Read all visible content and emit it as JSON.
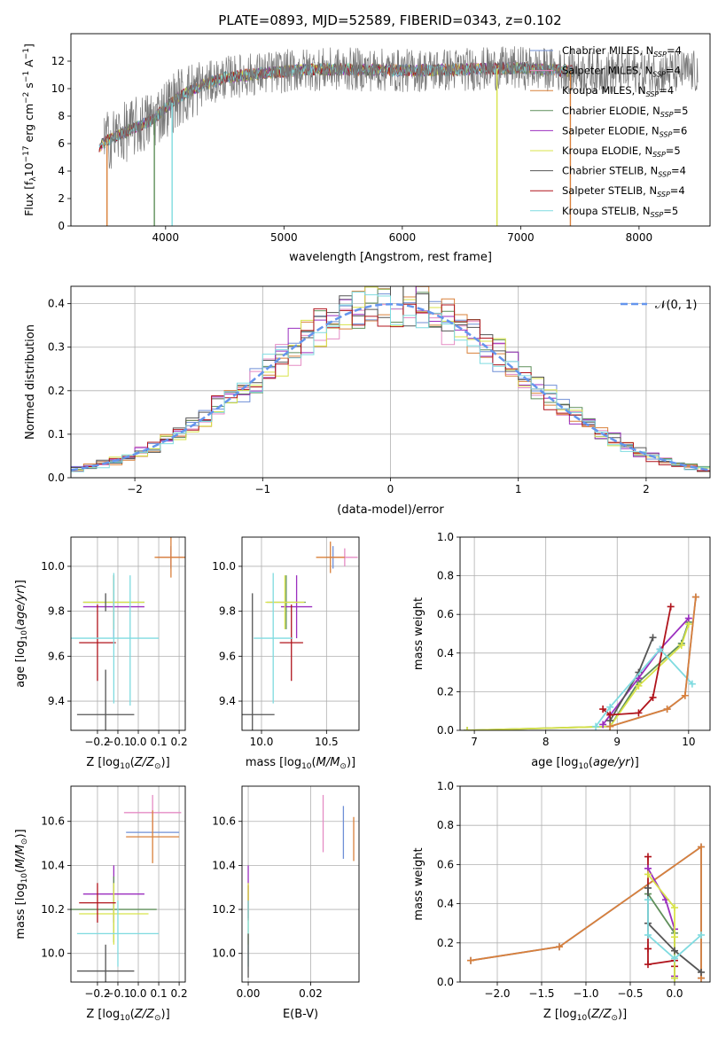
{
  "figure_title": "PLATE=0893, MJD=52589, FIBERID=0343, z=0.102",
  "colors": {
    "Chabrier MILES": "#6f8fd6",
    "Salpeter MILES": "#e58bc4",
    "Kroupa MILES": "#d9803a",
    "Chabrier ELODIE": "#5f8f5a",
    "Salpeter ELODIE": "#9b2fbf",
    "Kroupa ELODIE": "#d8e34a",
    "Chabrier STELIB": "#555555",
    "Salpeter STELIB": "#b0141c",
    "Kroupa STELIB": "#7fdbe0",
    "grid": "#b0b0b0",
    "spectrum": "#777777",
    "normal_curve": "#6495ed"
  },
  "chart_data": [
    {
      "id": "spectrum",
      "type": "line",
      "title": "PLATE=0893, MJD=52589, FIBERID=0343, z=0.102",
      "xlabel": "wavelength [Angstrom, rest frame]",
      "ylabel": "Flux [f_λ10^-17 erg cm^-2 s^-1 A^-1]",
      "xlim": [
        3200,
        8600
      ],
      "ylim": [
        0,
        14
      ],
      "xticks": [
        4000,
        5000,
        6000,
        7000,
        8000
      ],
      "yticks": [
        0,
        2,
        4,
        6,
        8,
        10,
        12
      ],
      "grid": false,
      "legend_position": "right",
      "legend": [
        {
          "name": "Chabrier MILES",
          "sub": "N_SSP=4"
        },
        {
          "name": "Salpeter MILES",
          "sub": "N_SSP=4"
        },
        {
          "name": "Kroupa MILES",
          "sub": "N_SSP=4"
        },
        {
          "name": "Chabrier ELODIE",
          "sub": "N_SSP=5"
        },
        {
          "name": "Salpeter ELODIE",
          "sub": "N_SSP=6"
        },
        {
          "name": "Kroupa ELODIE",
          "sub": "N_SSP=5"
        },
        {
          "name": "Chabrier STELIB",
          "sub": "N_SSP=4"
        },
        {
          "name": "Salpeter STELIB",
          "sub": "N_SSP=4"
        },
        {
          "name": "Kroupa STELIB",
          "sub": "N_SSP=5"
        }
      ],
      "continuum": {
        "x": [
          3400,
          3500,
          3700,
          3900,
          4000,
          4100,
          4300,
          4500,
          4800,
          5200,
          5600,
          6000,
          6500,
          7000,
          7400,
          7450
        ],
        "y": [
          5.5,
          6.2,
          7.0,
          7.8,
          8.6,
          9.3,
          10.2,
          10.8,
          11.1,
          11.4,
          11.4,
          11.3,
          11.4,
          11.5,
          11.3,
          11.3
        ]
      },
      "observed_range": [
        3480,
        8500
      ],
      "drop_lines": [
        {
          "series": "Kroupa MILES",
          "x": 3505
        },
        {
          "series": "Chabrier ELODIE",
          "x": 3905
        },
        {
          "series": "Kroupa STELIB",
          "x": 4055
        },
        {
          "series": "Kroupa ELODIE",
          "x": 6800
        },
        {
          "series": "Kroupa MILES",
          "x": 7420
        }
      ]
    },
    {
      "id": "residuals",
      "type": "histogram",
      "xlabel": "(data-model)/error",
      "ylabel": "Normed distribution",
      "xlim": [
        -2.5,
        2.5
      ],
      "ylim": [
        0,
        0.44
      ],
      "xticks": [
        -2,
        -1,
        0,
        1,
        2
      ],
      "yticks": [
        0.0,
        0.1,
        0.2,
        0.3,
        0.4
      ],
      "grid": true,
      "legend_position": "top-right",
      "legend": [
        {
          "name": "𝒩(0, 1)"
        }
      ],
      "bin_edges_start": -2.5,
      "bin_width": 0.1,
      "normal": {
        "mean": 0,
        "sigma": 1
      }
    },
    {
      "id": "Z-age",
      "type": "errorbar",
      "xlabel": "Z [log10(Z/Z⊙)]",
      "ylabel": "age  [log10(age/yr)]",
      "xlim": [
        -0.33,
        0.23
      ],
      "ylim": [
        9.27,
        10.13
      ],
      "xticks": [
        -0.2,
        -0.1,
        0.0,
        0.1,
        0.2
      ],
      "yticks": [
        9.4,
        9.6,
        9.8,
        10.0
      ],
      "grid": true,
      "points": [
        {
          "series": "Chabrier MILES",
          "x": 0.16,
          "y": 10.04,
          "xerr": 0.06,
          "yerr": 0.05
        },
        {
          "series": "Salpeter MILES",
          "x": 0.16,
          "y": 10.04,
          "xerr": 0.07,
          "yerr": 0.04
        },
        {
          "series": "Kroupa MILES",
          "x": 0.16,
          "y": 10.04,
          "xerr": 0.08,
          "yerr": 0.09
        },
        {
          "series": "Chabrier ELODIE",
          "x": -0.12,
          "y": 9.84,
          "xerr": 0.15,
          "yerr": 0.12
        },
        {
          "series": "Salpeter ELODIE",
          "x": -0.12,
          "y": 9.82,
          "xerr": 0.15,
          "yerr": 0.14
        },
        {
          "series": "Kroupa ELODIE",
          "x": -0.12,
          "y": 9.84,
          "xerr": 0.15,
          "yerr": 0.12
        },
        {
          "series": "Chabrier STELIB",
          "x": -0.16,
          "y": 9.34,
          "xerr": 0.14,
          "yerr": 0.2
        },
        {
          "series": "Salpeter STELIB",
          "x": -0.2,
          "y": 9.66,
          "xerr": 0.09,
          "yerr": 0.17
        },
        {
          "series": "Kroupa STELIB",
          "x": -0.12,
          "y": 9.68,
          "xerr": 0.22,
          "yerr": 0.29
        },
        {
          "series": "Chabrier STELIB",
          "x": -0.16,
          "y": 9.84,
          "xerr": 0.0,
          "yerr": 0.04
        },
        {
          "series": "Kroupa STELIB",
          "x": -0.04,
          "y": 9.67,
          "xerr": 0.0,
          "yerr": 0.29
        }
      ]
    },
    {
      "id": "mass-age",
      "type": "errorbar",
      "xlabel": "mass [log10(M/M⊙)]",
      "ylabel": "",
      "xlim": [
        9.85,
        10.75
      ],
      "ylim": [
        9.27,
        10.13
      ],
      "xticks": [
        10.0,
        10.5
      ],
      "yticks": [
        9.4,
        9.6,
        9.8,
        10.0
      ],
      "grid": true,
      "points": [
        {
          "series": "Chabrier MILES",
          "x": 10.55,
          "y": 10.04,
          "xerr": 0.05,
          "yerr": 0.05
        },
        {
          "series": "Salpeter MILES",
          "x": 10.64,
          "y": 10.04,
          "xerr": 0.1,
          "yerr": 0.04
        },
        {
          "series": "Kroupa MILES",
          "x": 10.53,
          "y": 10.04,
          "xerr": 0.11,
          "yerr": 0.07
        },
        {
          "series": "Chabrier ELODIE",
          "x": 10.19,
          "y": 9.84,
          "xerr": 0.15,
          "yerr": 0.12
        },
        {
          "series": "Salpeter ELODIE",
          "x": 10.27,
          "y": 9.82,
          "xerr": 0.12,
          "yerr": 0.14
        },
        {
          "series": "Kroupa ELODIE",
          "x": 10.18,
          "y": 9.84,
          "xerr": 0.15,
          "yerr": 0.12
        },
        {
          "series": "Chabrier STELIB",
          "x": 9.92,
          "y": 9.34,
          "xerr": 0.18,
          "yerr": 0.0
        },
        {
          "series": "Chabrier STELIB",
          "x": 9.93,
          "y": 9.55,
          "xerr": 0.0,
          "yerr": 0.33
        },
        {
          "series": "Salpeter STELIB",
          "x": 10.23,
          "y": 9.66,
          "xerr": 0.09,
          "yerr": 0.17
        },
        {
          "series": "Kroupa STELIB",
          "x": 10.09,
          "y": 9.68,
          "xerr": 0.15,
          "yerr": 0.29
        }
      ]
    },
    {
      "id": "age-weight",
      "type": "line",
      "xlabel": "age  [log10(age/yr)]",
      "ylabel": "mass weight",
      "xlim": [
        6.8,
        10.3
      ],
      "ylim": [
        0.0,
        1.0
      ],
      "xticks": [
        7,
        8,
        9,
        10
      ],
      "yticks": [
        0.0,
        0.2,
        0.4,
        0.6,
        0.8,
        1.0
      ],
      "grid": true,
      "series": [
        {
          "name": "Chabrier ELODIE",
          "x": [
            6.9,
            8.9,
            9.3,
            9.9,
            10.0
          ],
          "y": [
            0.0,
            0.02,
            0.25,
            0.45,
            0.56
          ]
        },
        {
          "name": "Kroupa ELODIE",
          "x": [
            6.9,
            8.9,
            9.3,
            9.9,
            10.0
          ],
          "y": [
            0.0,
            0.02,
            0.23,
            0.44,
            0.55
          ]
        },
        {
          "name": "Salpeter ELODIE",
          "x": [
            8.8,
            9.3,
            9.6,
            10.0
          ],
          "y": [
            0.03,
            0.27,
            0.42,
            0.58
          ]
        },
        {
          "name": "Chabrier STELIB",
          "x": [
            8.9,
            9.3,
            9.5
          ],
          "y": [
            0.05,
            0.3,
            0.48
          ]
        },
        {
          "name": "Salpeter STELIB",
          "x": [
            8.8,
            8.9,
            9.3,
            9.5,
            9.75
          ],
          "y": [
            0.11,
            0.08,
            0.09,
            0.17,
            0.64
          ]
        },
        {
          "name": "Kroupa STELIB",
          "x": [
            8.7,
            8.9,
            9.6,
            10.05
          ],
          "y": [
            0.02,
            0.12,
            0.42,
            0.24
          ]
        },
        {
          "name": "Chabrier MILES",
          "x": [
            8.9,
            9.7,
            9.95,
            10.1
          ],
          "y": [
            0.02,
            0.11,
            0.18,
            0.69
          ]
        },
        {
          "name": "Kroupa MILES",
          "x": [
            8.9,
            9.7,
            9.95,
            10.1
          ],
          "y": [
            0.02,
            0.11,
            0.18,
            0.69
          ]
        }
      ]
    },
    {
      "id": "Z-mass",
      "type": "errorbar",
      "xlabel": "Z [log10(Z/Z⊙)]",
      "ylabel": "mass [log10(M/M⊙)]",
      "xlim": [
        -0.33,
        0.23
      ],
      "ylim": [
        9.87,
        10.76
      ],
      "xticks": [
        -0.2,
        -0.1,
        0.0,
        0.1,
        0.2
      ],
      "yticks": [
        10.0,
        10.2,
        10.4,
        10.6
      ],
      "grid": true,
      "points": [
        {
          "series": "Salpeter MILES",
          "x": 0.07,
          "y": 10.64,
          "xerr": 0.14,
          "yerr": 0.08
        },
        {
          "series": "Chabrier MILES",
          "x": 0.07,
          "y": 10.55,
          "xerr": 0.13,
          "yerr": 0.0
        },
        {
          "series": "Kroupa MILES",
          "x": 0.07,
          "y": 10.53,
          "xerr": 0.13,
          "yerr": 0.12
        },
        {
          "series": "Salpeter ELODIE",
          "x": -0.12,
          "y": 10.27,
          "xerr": 0.15,
          "yerr": 0.13
        },
        {
          "series": "Chabrier ELODIE",
          "x": -0.12,
          "y": 10.2,
          "xerr": 0.21,
          "yerr": 0.15
        },
        {
          "series": "Kroupa ELODIE",
          "x": -0.12,
          "y": 10.18,
          "xerr": 0.17,
          "yerr": 0.14
        },
        {
          "series": "Salpeter STELIB",
          "x": -0.2,
          "y": 10.23,
          "xerr": 0.09,
          "yerr": 0.09
        },
        {
          "series": "Kroupa STELIB",
          "x": -0.1,
          "y": 10.09,
          "xerr": 0.2,
          "yerr": 0.15
        },
        {
          "series": "Chabrier STELIB",
          "x": -0.16,
          "y": 9.92,
          "xerr": 0.14,
          "yerr": 0.12
        }
      ]
    },
    {
      "id": "EBV-mass",
      "type": "errorbar",
      "xlabel": "E(B-V)",
      "ylabel": "",
      "xlim": [
        -0.002,
        0.0355
      ],
      "ylim": [
        9.87,
        10.76
      ],
      "xticks": [
        0.0,
        0.02
      ],
      "yticks": [
        10.0,
        10.2,
        10.4,
        10.6
      ],
      "grid": true,
      "points": [
        {
          "series": "Salpeter MILES",
          "x": 0.024,
          "y": 10.59,
          "xerr": 0,
          "yerr": 0.13
        },
        {
          "series": "Chabrier MILES",
          "x": 0.0305,
          "y": 10.55,
          "xerr": 0,
          "yerr": 0.12
        },
        {
          "series": "Kroupa MILES",
          "x": 0.0338,
          "y": 10.52,
          "xerr": 0,
          "yerr": 0.1
        },
        {
          "series": "Salpeter ELODIE",
          "x": 0.0,
          "y": 10.28,
          "xerr": 0,
          "yerr": 0.12
        },
        {
          "series": "Salpeter STELIB",
          "x": 0.0,
          "y": 10.23,
          "xerr": 0,
          "yerr": 0.08
        },
        {
          "series": "Kroupa ELODIE",
          "x": 0.0,
          "y": 10.18,
          "xerr": 0,
          "yerr": 0.14
        },
        {
          "series": "Kroupa STELIB",
          "x": 0.0,
          "y": 10.09,
          "xerr": 0,
          "yerr": 0.15
        },
        {
          "series": "Chabrier STELIB",
          "x": 0.0,
          "y": 9.99,
          "xerr": 0,
          "yerr": 0.1
        }
      ]
    },
    {
      "id": "Z-weight",
      "type": "line",
      "xlabel": "Z [log10(Z/Z⊙)]",
      "ylabel": "mass weight",
      "xlim": [
        -2.42,
        0.4
      ],
      "ylim": [
        0.0,
        1.0
      ],
      "xticks": [
        -2.0,
        -1.5,
        -1.0,
        -0.5,
        0.0
      ],
      "yticks": [
        0.0,
        0.2,
        0.4,
        0.6,
        0.8,
        1.0
      ],
      "grid": true,
      "series": [
        {
          "name": "Chabrier MILES",
          "x": [
            -2.3,
            -1.3,
            0.3,
            0.3
          ],
          "y": [
            0.11,
            0.18,
            0.69,
            0.02
          ]
        },
        {
          "name": "Kroupa MILES",
          "x": [
            -2.3,
            -1.3,
            0.3,
            0.3
          ],
          "y": [
            0.11,
            0.18,
            0.69,
            0.02
          ]
        },
        {
          "name": "Salpeter STELIB",
          "x": [
            -0.3,
            -0.3,
            -0.3,
            0.0,
            0.0
          ],
          "y": [
            0.64,
            0.17,
            0.09,
            0.11,
            0.08
          ]
        },
        {
          "name": "Salpeter ELODIE",
          "x": [
            -0.3,
            -0.1,
            0.0,
            0.0
          ],
          "y": [
            0.58,
            0.42,
            0.27,
            0.03
          ]
        },
        {
          "name": "Chabrier ELODIE",
          "x": [
            -0.3,
            0.0,
            0.0
          ],
          "y": [
            0.45,
            0.25,
            0.02
          ]
        },
        {
          "name": "Kroupa ELODIE",
          "x": [
            -0.3,
            0.0,
            0.0,
            0.0
          ],
          "y": [
            0.55,
            0.38,
            0.23,
            0.02
          ]
        },
        {
          "name": "Chabrier STELIB",
          "x": [
            -0.3,
            -0.3,
            0.0,
            0.3
          ],
          "y": [
            0.48,
            0.3,
            0.16,
            0.05
          ]
        },
        {
          "name": "Kroupa STELIB",
          "x": [
            -0.3,
            -0.3,
            0.0,
            0.3
          ],
          "y": [
            0.42,
            0.24,
            0.12,
            0.24
          ]
        }
      ]
    }
  ]
}
